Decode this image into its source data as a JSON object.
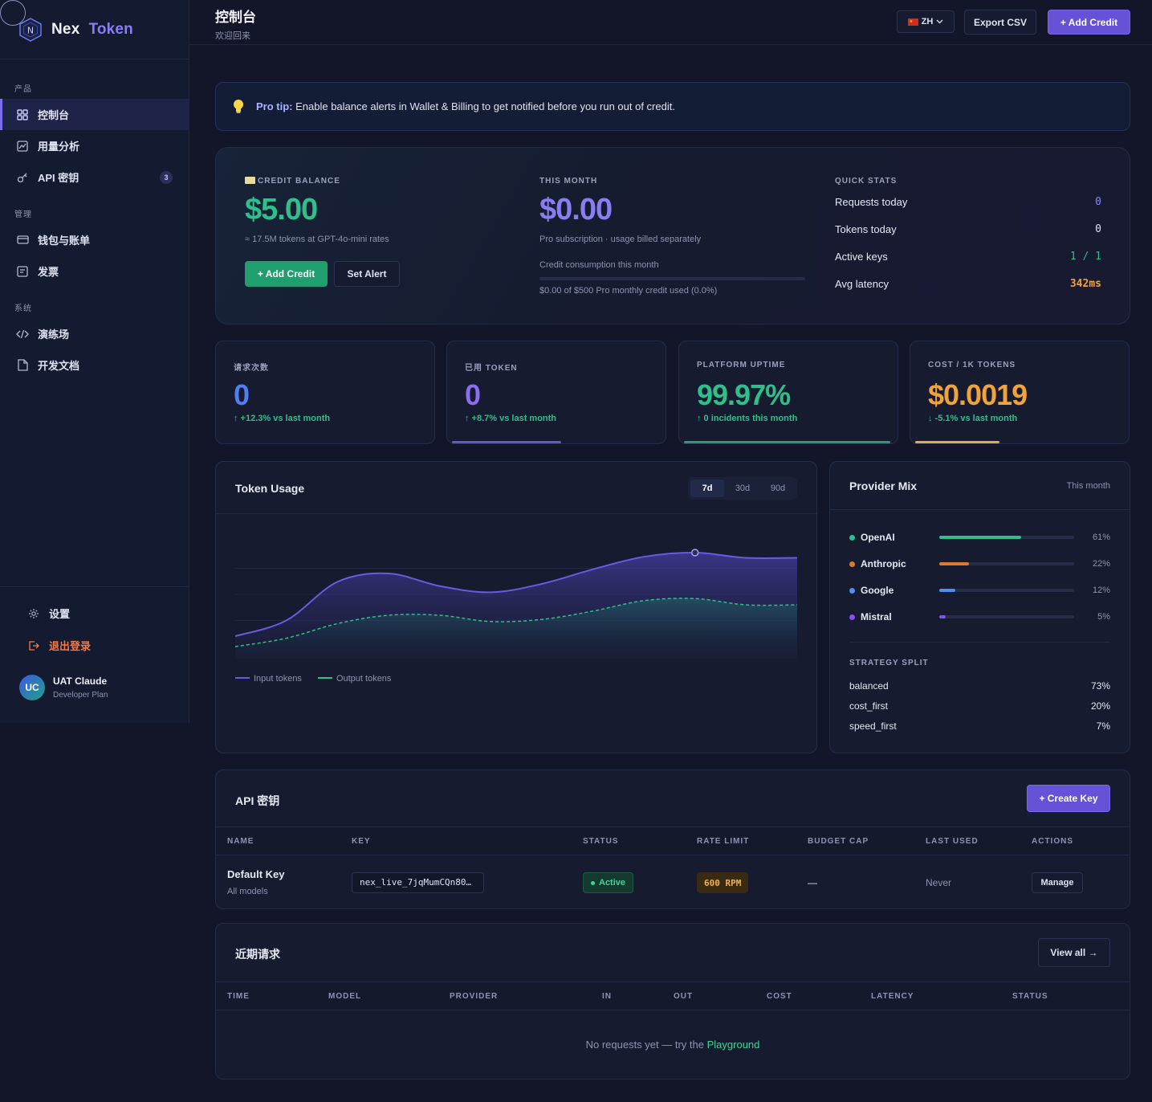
{
  "brand": {
    "name": "Nex",
    "accent": "Token",
    "logo_letter": "N"
  },
  "sidebar": {
    "sections": [
      {
        "label": "产品",
        "items": [
          {
            "label": "控制台",
            "icon": "grid-icon",
            "active": true
          },
          {
            "label": "用量分析",
            "icon": "chart-icon"
          },
          {
            "label": "API 密钥",
            "icon": "key-icon",
            "badge": "3"
          }
        ]
      },
      {
        "label": "管理",
        "items": [
          {
            "label": "钱包与账单",
            "icon": "wallet-icon"
          },
          {
            "label": "发票",
            "icon": "invoice-icon"
          }
        ]
      },
      {
        "label": "系统",
        "items": [
          {
            "label": "演练场",
            "icon": "code-icon"
          },
          {
            "label": "开发文档",
            "icon": "doc-icon"
          }
        ]
      }
    ],
    "settings_label": "设置",
    "logout_label": "退出登录",
    "user": {
      "initials": "UC",
      "name": "UAT Claude",
      "plan": "Developer Plan"
    }
  },
  "header": {
    "title": "控制台",
    "subtitle": "欢迎回来",
    "lang": "ZH",
    "export_label": "Export CSV",
    "add_credit_label": "+ Add Credit"
  },
  "tip": {
    "bold": "Pro tip:",
    "text": " Enable balance alerts in Wallet & Billing to get notified before you run out of credit."
  },
  "balance": {
    "label": "CREDIT BALANCE",
    "value": "$5.00",
    "note": "≈ 17.5M tokens at GPT-4o-mini rates",
    "add_credit": "+ Add Credit",
    "set_alert": "Set Alert"
  },
  "month": {
    "label": "THIS MONTH",
    "value": "$0.00",
    "note": "Pro subscription · usage billed separately",
    "consumption_label": "Credit consumption this month",
    "consumption_note": "$0.00 of $500 Pro monthly credit used (0.0%)",
    "consumption_fraction": 0.0
  },
  "quick_stats": {
    "label": "QUICK STATS",
    "rows": [
      {
        "name": "Requests today",
        "value": "0",
        "color": "#7c8cf8"
      },
      {
        "name": "Tokens today",
        "value": "0",
        "color": "#dfe2f0"
      },
      {
        "name": "Active keys",
        "value": "1 / 1",
        "color": "#2fbf8a"
      },
      {
        "name": "Avg latency",
        "value": "342ms",
        "color": "#f0a23c"
      }
    ]
  },
  "stats": [
    {
      "label": "请求次数",
      "value": "0",
      "delta": "↑ +12.3% vs last month",
      "value_color": "#4f7ff0",
      "delta_color": "#2fbf8a",
      "bar_color": "",
      "bar_fraction": 0
    },
    {
      "label": "已用 TOKEN",
      "value": "0",
      "delta": "↑ +8.7% vs last month",
      "value_color": "#8a6df0",
      "delta_color": "#2fbf8a",
      "bar_color": "#6552d6",
      "bar_fraction": 0.52
    },
    {
      "label": "PLATFORM UPTIME",
      "value": "99.97%",
      "delta": "↑ 0 incidents this month",
      "value_color": "#2fbf8a",
      "delta_color": "#2fbf8a",
      "bar_color": "#1f9e78",
      "bar_fraction": 0.98
    },
    {
      "label": "COST / 1K TOKENS",
      "value": "$0.0019",
      "delta": "↓ -5.1% vs last month",
      "value_color": "#f0a23c",
      "delta_color": "#2fbf8a",
      "bar_color": "#f0a23c",
      "bar_fraction": 0.4
    }
  ],
  "token_usage": {
    "title": "Token Usage",
    "ranges": [
      "7d",
      "30d",
      "90d"
    ],
    "active_range": "7d",
    "legend": [
      "Input tokens",
      "Output tokens"
    ]
  },
  "chart_data": {
    "type": "area",
    "series": [
      {
        "name": "Input tokens",
        "values": [
          0.1,
          0.25,
          0.62,
          0.7,
          0.58,
          0.52,
          0.6,
          0.74,
          0.86,
          0.9,
          0.85,
          0.85
        ]
      },
      {
        "name": "Output tokens",
        "values": [
          0.0,
          0.08,
          0.22,
          0.3,
          0.3,
          0.24,
          0.26,
          0.34,
          0.44,
          0.46,
          0.4,
          0.4
        ]
      }
    ],
    "colors": [
      "#6a5ae0",
      "#2fbf8a"
    ],
    "grid": true
  },
  "provider_mix": {
    "title": "Provider Mix",
    "period": "This month",
    "providers": [
      {
        "name": "OpenAI",
        "pct": "61%",
        "fraction": 0.61,
        "color": "#2fbf8a"
      },
      {
        "name": "Anthropic",
        "pct": "22%",
        "fraction": 0.22,
        "color": "#e07a2a"
      },
      {
        "name": "Google",
        "pct": "12%",
        "fraction": 0.12,
        "color": "#4f8ff0"
      },
      {
        "name": "Mistral",
        "pct": "5%",
        "fraction": 0.05,
        "color": "#8a4df0"
      }
    ],
    "strategy_label": "STRATEGY SPLIT",
    "strategies": [
      {
        "name": "balanced",
        "pct": "73%"
      },
      {
        "name": "cost_first",
        "pct": "20%"
      },
      {
        "name": "speed_first",
        "pct": "7%"
      }
    ]
  },
  "api_keys": {
    "title": "API 密钥",
    "create_label": "+ Create Key",
    "columns": [
      "NAME",
      "KEY",
      "STATUS",
      "RATE LIMIT",
      "BUDGET CAP",
      "LAST USED",
      "ACTIONS"
    ],
    "rows": [
      {
        "name": "Default Key",
        "scope": "All models",
        "key": "nex_live_7jqMumCQn80…",
        "status": "Active",
        "rate": "600 RPM",
        "budget": "—",
        "last_used": "Never",
        "action": "Manage"
      }
    ]
  },
  "recent": {
    "title": "近期请求",
    "view_all": "View all →",
    "columns": [
      "TIME",
      "MODEL",
      "PROVIDER",
      "IN",
      "OUT",
      "COST",
      "LATENCY",
      "STATUS"
    ],
    "empty_text": "No requests yet — try the ",
    "empty_link": "Playground"
  }
}
